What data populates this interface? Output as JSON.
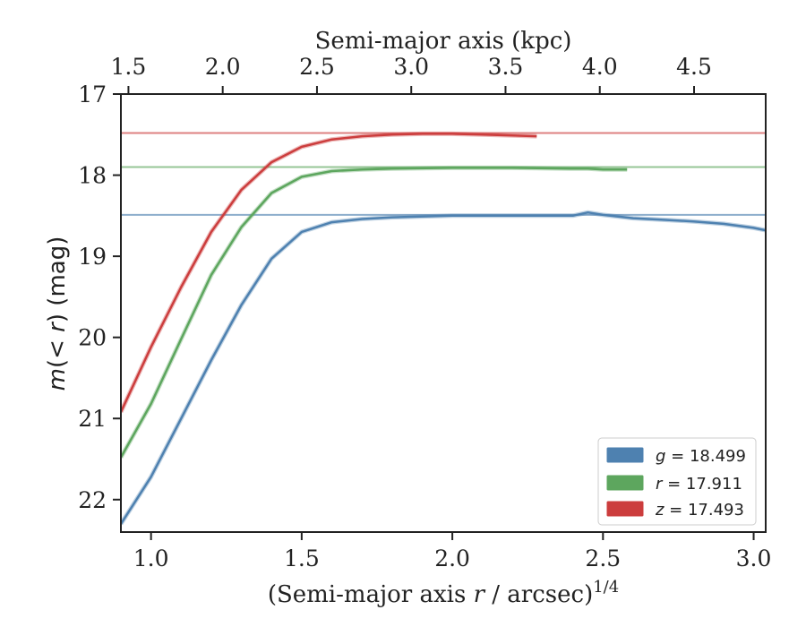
{
  "chart_data": {
    "type": "line",
    "xlabel": "(Semi-major axis r / arcsec)^{1/4}",
    "xlabel_prefix": "(Semi-major axis ",
    "xlabel_var": "r",
    "xlabel_suffix": " / arcsec)",
    "xlabel_exponent": "1/4",
    "ylabel": "m(<r) (mag)",
    "ylabel_var": "m",
    "ylabel_open": "(",
    "ylabel_lt": "< ",
    "ylabel_r": "r",
    "ylabel_close": ") (mag)",
    "top_xlabel": "Semi-major axis (kpc)",
    "xlim": [
      0.9,
      3.04
    ],
    "ylim": [
      22.4,
      17.0
    ],
    "y_inverted": true,
    "x_ticks": [
      1.0,
      1.5,
      2.0,
      2.5,
      3.0
    ],
    "x_tick_labels": [
      "1.0",
      "1.5",
      "2.0",
      "2.5",
      "3.0"
    ],
    "y_ticks": [
      17,
      18,
      19,
      20,
      21,
      22
    ],
    "y_tick_labels": [
      "17",
      "18",
      "19",
      "20",
      "21",
      "22"
    ],
    "top_ticks_kpc": [
      1.5,
      2.0,
      2.5,
      3.0,
      3.5,
      4.0,
      4.5
    ],
    "top_tick_labels": [
      "1.5",
      "2.0",
      "2.5",
      "3.0",
      "3.5",
      "4.0",
      "4.5"
    ],
    "top_axis_map": {
      "x": [
        0.9,
        3.04
      ],
      "kpc": [
        1.46,
        4.88
      ]
    },
    "legend_position": "lower-right",
    "grid": false,
    "series": [
      {
        "name": "g",
        "label_var": "g",
        "label_value": " = 18.499",
        "color": "#4e81b0",
        "asymptote": 18.49,
        "x": [
          0.9,
          1.0,
          1.1,
          1.2,
          1.3,
          1.4,
          1.5,
          1.6,
          1.7,
          1.8,
          2.0,
          2.2,
          2.4,
          2.45,
          2.5,
          2.6,
          2.7,
          2.8,
          2.9,
          3.0,
          3.04
        ],
        "y": [
          22.3,
          21.72,
          21.0,
          20.28,
          19.6,
          19.03,
          18.7,
          18.58,
          18.54,
          18.52,
          18.5,
          18.5,
          18.5,
          18.46,
          18.49,
          18.53,
          18.55,
          18.57,
          18.6,
          18.65,
          18.68
        ]
      },
      {
        "name": "r",
        "label_var": "r",
        "label_value": " = 17.911",
        "color": "#5da65e",
        "asymptote": 17.9,
        "x": [
          0.9,
          1.0,
          1.1,
          1.2,
          1.3,
          1.4,
          1.5,
          1.6,
          1.7,
          1.8,
          2.0,
          2.2,
          2.4,
          2.45,
          2.5,
          2.58
        ],
        "y": [
          21.48,
          20.82,
          20.02,
          19.23,
          18.64,
          18.22,
          18.02,
          17.95,
          17.93,
          17.92,
          17.91,
          17.91,
          17.92,
          17.92,
          17.93,
          17.93
        ]
      },
      {
        "name": "z",
        "label_var": "z",
        "label_value": " = 17.493",
        "color": "#cc3d3d",
        "asymptote": 17.48,
        "x": [
          0.9,
          1.0,
          1.1,
          1.2,
          1.3,
          1.4,
          1.5,
          1.6,
          1.7,
          1.8,
          1.9,
          2.0,
          2.1,
          2.2,
          2.28
        ],
        "y": [
          20.92,
          20.12,
          19.38,
          18.7,
          18.18,
          17.84,
          17.65,
          17.56,
          17.52,
          17.5,
          17.49,
          17.49,
          17.5,
          17.51,
          17.52
        ]
      }
    ]
  }
}
